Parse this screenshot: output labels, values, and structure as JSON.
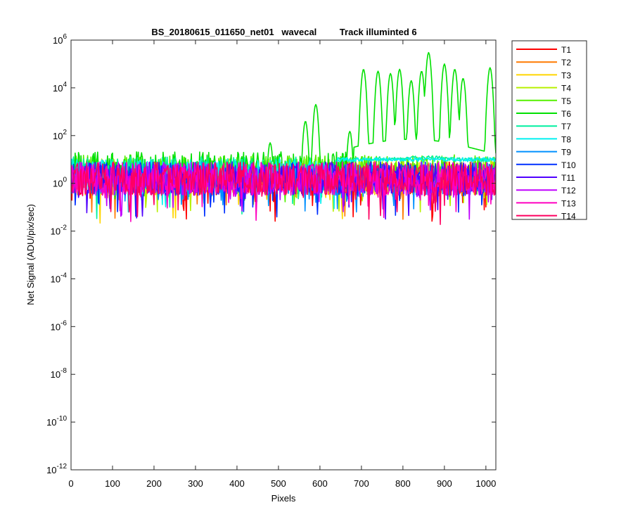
{
  "chart_data": {
    "type": "line",
    "title": "BS_20180615_011650_net01   wavecal         Track illuminted 6",
    "xlabel": "Pixels",
    "ylabel": "Net Signal (ADU/pix/sec)",
    "xlim": [
      0,
      1024
    ],
    "ylim": [
      1e-12,
      1000000.0
    ],
    "yscale": "log",
    "grid": false,
    "legend_position": "outside-right-top",
    "x_ticks": [
      {
        "value": 0,
        "label": "0"
      },
      {
        "value": 100,
        "label": "100"
      },
      {
        "value": 200,
        "label": "200"
      },
      {
        "value": 300,
        "label": "300"
      },
      {
        "value": 400,
        "label": "400"
      },
      {
        "value": 500,
        "label": "500"
      },
      {
        "value": 600,
        "label": "600"
      },
      {
        "value": 700,
        "label": "700"
      },
      {
        "value": 800,
        "label": "800"
      },
      {
        "value": 900,
        "label": "900"
      },
      {
        "value": 1000,
        "label": "1000"
      }
    ],
    "y_ticks": [
      {
        "exp": 6,
        "base": "10",
        "sup": "6"
      },
      {
        "exp": 4,
        "base": "10",
        "sup": "4"
      },
      {
        "exp": 2,
        "base": "10",
        "sup": "2"
      },
      {
        "exp": 0,
        "base": "10",
        "sup": "0"
      },
      {
        "exp": -2,
        "base": "10",
        "sup": "-2"
      },
      {
        "exp": -4,
        "base": "10",
        "sup": "-4"
      },
      {
        "exp": -6,
        "base": "10",
        "sup": "-6"
      },
      {
        "exp": -8,
        "base": "10",
        "sup": "-8"
      },
      {
        "exp": -10,
        "base": "10",
        "sup": "-10"
      },
      {
        "exp": -12,
        "base": "10",
        "sup": "-12"
      }
    ],
    "series": [
      {
        "name": "T1",
        "color": "#ff0000",
        "noise_level": 3,
        "bump": 0
      },
      {
        "name": "T2",
        "color": "#ff7a00",
        "noise_level": 3,
        "bump": 0
      },
      {
        "name": "T3",
        "color": "#ffd500",
        "noise_level": 3,
        "bump": 0
      },
      {
        "name": "T4",
        "color": "#b8f000",
        "noise_level": 4,
        "bump": 0
      },
      {
        "name": "T5",
        "color": "#55f000",
        "noise_level": 6,
        "bump": 0
      },
      {
        "name": "T6",
        "color": "#00e000",
        "noise_level": 8,
        "bump": 0,
        "peaks_x": [
          480,
          565,
          590,
          672,
          705,
          740,
          770,
          792,
          820,
          845,
          862,
          900,
          925,
          945,
          1010
        ],
        "peaks_y": [
          50,
          400,
          2000,
          150,
          60000,
          50000,
          40000,
          60000,
          20000,
          50000,
          300000,
          100000,
          60000,
          25000,
          70000
        ]
      },
      {
        "name": "T7",
        "color": "#00f0a0",
        "noise_level": 5,
        "bump": 12
      },
      {
        "name": "T8",
        "color": "#00f0f0",
        "noise_level": 4,
        "bump": 8
      },
      {
        "name": "T9",
        "color": "#0090ff",
        "noise_level": 3,
        "bump": 0
      },
      {
        "name": "T10",
        "color": "#0030ff",
        "noise_level": 3,
        "bump": 0
      },
      {
        "name": "T11",
        "color": "#5000ff",
        "noise_level": 3,
        "bump": 0
      },
      {
        "name": "T12",
        "color": "#c000ff",
        "noise_level": 3,
        "bump": 0
      },
      {
        "name": "T13",
        "color": "#ff00c0",
        "noise_level": 3,
        "bump": 0
      },
      {
        "name": "T14",
        "color": "#ff0060",
        "noise_level": 3,
        "bump": 0
      }
    ]
  }
}
